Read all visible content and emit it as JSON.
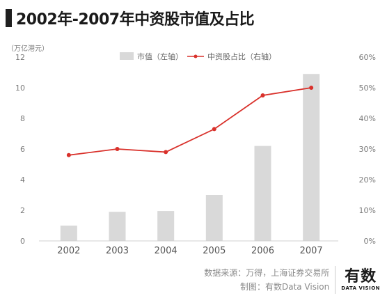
{
  "header": {
    "title": "2002年-2007年中资股市值及占比"
  },
  "chart_data": {
    "type": "bar",
    "title": "2002年-2007年中资股市值及占比",
    "left_axis_unit": "（万亿港元）",
    "categories": [
      "2002",
      "2003",
      "2004",
      "2005",
      "2006",
      "2007"
    ],
    "series": [
      {
        "name": "市值（左轴）",
        "type": "bar",
        "axis": "left",
        "color": "#d9d9d9",
        "values": [
          1.0,
          1.9,
          1.95,
          3.0,
          6.2,
          10.9
        ]
      },
      {
        "name": "中资股占比（右轴）",
        "type": "line",
        "axis": "right",
        "color": "#d9312b",
        "values": [
          0.28,
          0.3,
          0.29,
          0.365,
          0.475,
          0.5
        ]
      }
    ],
    "y_left": {
      "lim": [
        0,
        12
      ],
      "ticks": [
        "0",
        "2",
        "4",
        "6",
        "8",
        "10",
        "12"
      ]
    },
    "y_right": {
      "lim": [
        0,
        0.6
      ],
      "ticks": [
        "0%",
        "10%",
        "20%",
        "30%",
        "40%",
        "50%",
        "60%"
      ]
    },
    "grid": false,
    "legend_position": "top"
  },
  "footer": {
    "source": "数据来源：万得，上海证券交易所",
    "credit": "制图：有数Data Vision"
  },
  "logo": {
    "cn": "有数",
    "en": "DATA VISION"
  }
}
